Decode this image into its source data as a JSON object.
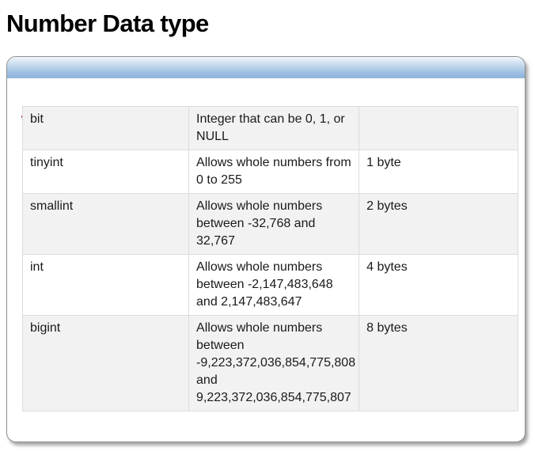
{
  "title": "Number Data type",
  "rows": [
    {
      "type": "bit",
      "description": "Integer that can be 0, 1, or NULL",
      "storage": ""
    },
    {
      "type": "tinyint",
      "description": "Allows whole numbers from 0 to 255",
      "storage": "1 byte"
    },
    {
      "type": "smallint",
      "description": "Allows whole numbers between -32,768 and 32,767",
      "storage": "2 bytes"
    },
    {
      "type": "int",
      "description": "Allows whole numbers between -2,147,483,648 and 2,147,483,647",
      "storage": "4 bytes"
    },
    {
      "type": "bigint",
      "description": "Allows whole numbers between -9,223,372,036,854,775,808 and 9,223,372,036,854,775,807",
      "storage": "8 bytes"
    }
  ]
}
